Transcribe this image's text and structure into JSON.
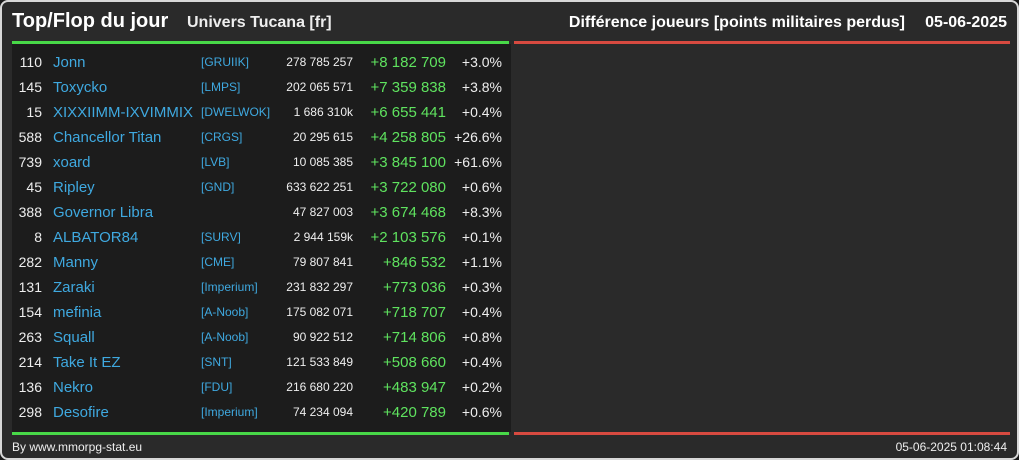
{
  "header": {
    "title": "Top/Flop du jour",
    "universe": "Univers Tucana [fr]",
    "diff_title": "Différence joueurs [points militaires perdus]",
    "date": "05-06-2025"
  },
  "colors": {
    "positive": "#5fe35f",
    "link": "#3fa9e0",
    "green_bar": "#48d848",
    "red_bar": "#d74a40"
  },
  "rows": [
    {
      "rank": "110",
      "name": "Jonn",
      "alliance": "[GRUIIK]",
      "points": "278 785 257",
      "diff": "+8 182 709",
      "pct": "+3.0%"
    },
    {
      "rank": "145",
      "name": "Toxycko",
      "alliance": "[LMPS]",
      "points": "202 065 571",
      "diff": "+7 359 838",
      "pct": "+3.8%"
    },
    {
      "rank": "15",
      "name": "XIXXIIMM-IXVIMMIX",
      "alliance": "[DWELWOK]",
      "points": "1 686 310k",
      "diff": "+6 655 441",
      "pct": "+0.4%"
    },
    {
      "rank": "588",
      "name": "Chancellor Titan",
      "alliance": "[CRGS]",
      "points": "20 295 615",
      "diff": "+4 258 805",
      "pct": "+26.6%"
    },
    {
      "rank": "739",
      "name": "xoard",
      "alliance": "[LVB]",
      "points": "10 085 385",
      "diff": "+3 845 100",
      "pct": "+61.6%"
    },
    {
      "rank": "45",
      "name": "Ripley",
      "alliance": "[GND]",
      "points": "633 622 251",
      "diff": "+3 722 080",
      "pct": "+0.6%"
    },
    {
      "rank": "388",
      "name": "Governor Libra",
      "alliance": "",
      "points": "47 827 003",
      "diff": "+3 674 468",
      "pct": "+8.3%"
    },
    {
      "rank": "8",
      "name": "ALBATOR84",
      "alliance": "[SURV]",
      "points": "2 944 159k",
      "diff": "+2 103 576",
      "pct": "+0.1%"
    },
    {
      "rank": "282",
      "name": "Manny",
      "alliance": "[CME]",
      "points": "79 807 841",
      "diff": "+846 532",
      "pct": "+1.1%"
    },
    {
      "rank": "131",
      "name": "Zaraki",
      "alliance": "[Imperium]",
      "points": "231 832 297",
      "diff": "+773 036",
      "pct": "+0.3%"
    },
    {
      "rank": "154",
      "name": "mefinia",
      "alliance": "[A-Noob]",
      "points": "175 082 071",
      "diff": "+718 707",
      "pct": "+0.4%"
    },
    {
      "rank": "263",
      "name": "Squall",
      "alliance": "[A-Noob]",
      "points": "90 922 512",
      "diff": "+714 806",
      "pct": "+0.8%"
    },
    {
      "rank": "214",
      "name": "Take It EZ",
      "alliance": "[SNT]",
      "points": "121 533 849",
      "diff": "+508 660",
      "pct": "+0.4%"
    },
    {
      "rank": "136",
      "name": "Nekro",
      "alliance": "[FDU]",
      "points": "216 680 220",
      "diff": "+483 947",
      "pct": "+0.2%"
    },
    {
      "rank": "298",
      "name": "Desofire",
      "alliance": "[Imperium]",
      "points": "74 234 094",
      "diff": "+420 789",
      "pct": "+0.6%"
    }
  ],
  "footer": {
    "credit": "By www.mmorpg-stat.eu",
    "timestamp": "05-06-2025 01:08:44"
  }
}
